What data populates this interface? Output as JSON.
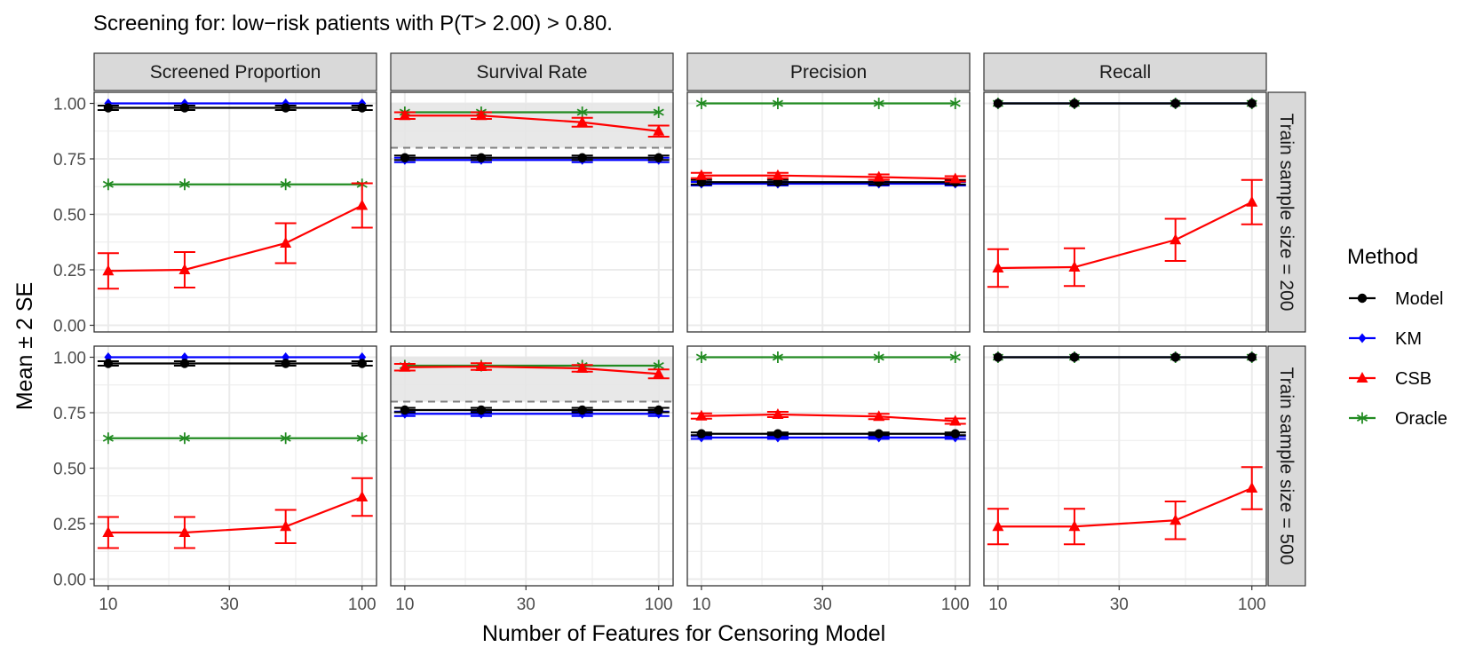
{
  "figure": {
    "title": "Screening for: low−risk patients with P(T> 2.00) > 0.80.",
    "xlabel": "Number of Features for Censoring Model",
    "ylabel": "Mean ± 2 SE",
    "legend_title": "Method"
  },
  "colors": {
    "Model": "#000000",
    "KM": "#0000FF",
    "CSB": "#FF0000",
    "Oracle": "#228B22",
    "strip": "#D9D9D9",
    "grid": "#EBEBEB",
    "threshold": "#7F7F7F",
    "band": "#E5E5E5"
  },
  "chart_data": {
    "type": "line",
    "x": [
      10,
      20,
      50,
      100
    ],
    "x_scale": "log10",
    "xlim": [
      8.8,
      114
    ],
    "ylim": [
      -0.03,
      1.05
    ],
    "x_ticks": [
      10,
      30,
      100
    ],
    "x_tick_labels": [
      "10",
      "30",
      "100"
    ],
    "y_ticks": [
      0,
      0.25,
      0.5,
      0.75,
      1.0
    ],
    "y_tick_labels": [
      "0.00",
      "0.25",
      "0.50",
      "0.75",
      "1.00"
    ],
    "columns": [
      "Screened Proportion",
      "Survival Rate",
      "Precision",
      "Recall"
    ],
    "rows": [
      "Train sample size = 200",
      "Train sample size = 500"
    ],
    "methods": [
      "Model",
      "KM",
      "CSB",
      "Oracle"
    ],
    "threshold": 0.8,
    "threshold_column": "Survival Rate",
    "panels": [
      {
        "row": 0,
        "col": 0,
        "series": {
          "Model": {
            "values": [
              0.98,
              0.98,
              0.98,
              0.98
            ],
            "se2": [
              0.01,
              0.01,
              0.01,
              0.01
            ]
          },
          "KM": {
            "values": [
              1.0,
              1.0,
              1.0,
              1.0
            ],
            "se2": [
              0,
              0,
              0,
              0
            ]
          },
          "CSB": {
            "values": [
              0.245,
              0.25,
              0.37,
              0.54
            ],
            "se2": [
              0.08,
              0.08,
              0.09,
              0.1
            ]
          },
          "Oracle": {
            "values": [
              0.635,
              0.635,
              0.635,
              0.635
            ],
            "se2": [
              0,
              0,
              0,
              0
            ]
          }
        }
      },
      {
        "row": 0,
        "col": 1,
        "series": {
          "Model": {
            "values": [
              0.755,
              0.755,
              0.755,
              0.755
            ],
            "se2": [
              0.01,
              0.01,
              0.01,
              0.01
            ]
          },
          "KM": {
            "values": [
              0.745,
              0.745,
              0.745,
              0.745
            ],
            "se2": [
              0.01,
              0.01,
              0.01,
              0.01
            ]
          },
          "CSB": {
            "values": [
              0.945,
              0.945,
              0.915,
              0.875
            ],
            "se2": [
              0.015,
              0.015,
              0.02,
              0.025
            ]
          },
          "Oracle": {
            "values": [
              0.96,
              0.96,
              0.96,
              0.96
            ],
            "se2": [
              0,
              0,
              0,
              0
            ]
          }
        }
      },
      {
        "row": 0,
        "col": 2,
        "series": {
          "Model": {
            "values": [
              0.645,
              0.645,
              0.645,
              0.645
            ],
            "se2": [
              0.01,
              0.01,
              0.01,
              0.01
            ]
          },
          "KM": {
            "values": [
              0.638,
              0.638,
              0.638,
              0.638
            ],
            "se2": [
              0.008,
              0.008,
              0.008,
              0.008
            ]
          },
          "CSB": {
            "values": [
              0.675,
              0.675,
              0.668,
              0.66
            ],
            "se2": [
              0.012,
              0.012,
              0.012,
              0.012
            ]
          },
          "Oracle": {
            "values": [
              1.0,
              1.0,
              1.0,
              1.0
            ],
            "se2": [
              0,
              0,
              0,
              0
            ]
          }
        }
      },
      {
        "row": 0,
        "col": 3,
        "series": {
          "Model": {
            "values": [
              1.0,
              1.0,
              1.0,
              1.0
            ],
            "se2": [
              0,
              0,
              0,
              0
            ]
          },
          "KM": {
            "values": [
              1.0,
              1.0,
              1.0,
              1.0
            ],
            "se2": [
              0,
              0,
              0,
              0
            ]
          },
          "CSB": {
            "values": [
              0.258,
              0.262,
              0.385,
              0.555
            ],
            "se2": [
              0.085,
              0.085,
              0.095,
              0.1
            ]
          },
          "Oracle": {
            "values": [
              1.0,
              1.0,
              1.0,
              1.0
            ],
            "se2": [
              0,
              0,
              0,
              0
            ]
          }
        }
      },
      {
        "row": 1,
        "col": 0,
        "series": {
          "Model": {
            "values": [
              0.972,
              0.972,
              0.972,
              0.972
            ],
            "se2": [
              0.01,
              0.01,
              0.01,
              0.01
            ]
          },
          "KM": {
            "values": [
              1.0,
              1.0,
              1.0,
              1.0
            ],
            "se2": [
              0,
              0,
              0,
              0
            ]
          },
          "CSB": {
            "values": [
              0.21,
              0.21,
              0.237,
              0.37
            ],
            "se2": [
              0.07,
              0.07,
              0.075,
              0.085
            ]
          },
          "Oracle": {
            "values": [
              0.635,
              0.635,
              0.635,
              0.635
            ],
            "se2": [
              0,
              0,
              0,
              0
            ]
          }
        }
      },
      {
        "row": 1,
        "col": 1,
        "series": {
          "Model": {
            "values": [
              0.762,
              0.762,
              0.762,
              0.762
            ],
            "se2": [
              0.01,
              0.01,
              0.01,
              0.01
            ]
          },
          "KM": {
            "values": [
              0.745,
              0.745,
              0.745,
              0.745
            ],
            "se2": [
              0.01,
              0.01,
              0.01,
              0.01
            ]
          },
          "CSB": {
            "values": [
              0.955,
              0.958,
              0.95,
              0.925
            ],
            "se2": [
              0.015,
              0.015,
              0.015,
              0.02
            ]
          },
          "Oracle": {
            "values": [
              0.962,
              0.962,
              0.962,
              0.962
            ],
            "se2": [
              0,
              0,
              0,
              0
            ]
          }
        }
      },
      {
        "row": 1,
        "col": 2,
        "series": {
          "Model": {
            "values": [
              0.655,
              0.655,
              0.655,
              0.655
            ],
            "se2": [
              0.006,
              0.006,
              0.006,
              0.006
            ]
          },
          "KM": {
            "values": [
              0.638,
              0.638,
              0.638,
              0.638
            ],
            "se2": [
              0.006,
              0.006,
              0.006,
              0.006
            ]
          },
          "CSB": {
            "values": [
              0.735,
              0.742,
              0.733,
              0.712
            ],
            "se2": [
              0.012,
              0.012,
              0.012,
              0.012
            ]
          },
          "Oracle": {
            "values": [
              1.0,
              1.0,
              1.0,
              1.0
            ],
            "se2": [
              0,
              0,
              0,
              0
            ]
          }
        }
      },
      {
        "row": 1,
        "col": 3,
        "series": {
          "Model": {
            "values": [
              1.0,
              1.0,
              1.0,
              1.0
            ],
            "se2": [
              0,
              0,
              0,
              0
            ]
          },
          "KM": {
            "values": [
              1.0,
              1.0,
              1.0,
              1.0
            ],
            "se2": [
              0,
              0,
              0,
              0
            ]
          },
          "CSB": {
            "values": [
              0.237,
              0.237,
              0.265,
              0.41
            ],
            "se2": [
              0.08,
              0.08,
              0.085,
              0.095
            ]
          },
          "Oracle": {
            "values": [
              1.0,
              1.0,
              1.0,
              1.0
            ],
            "se2": [
              0,
              0,
              0,
              0
            ]
          }
        }
      }
    ]
  }
}
